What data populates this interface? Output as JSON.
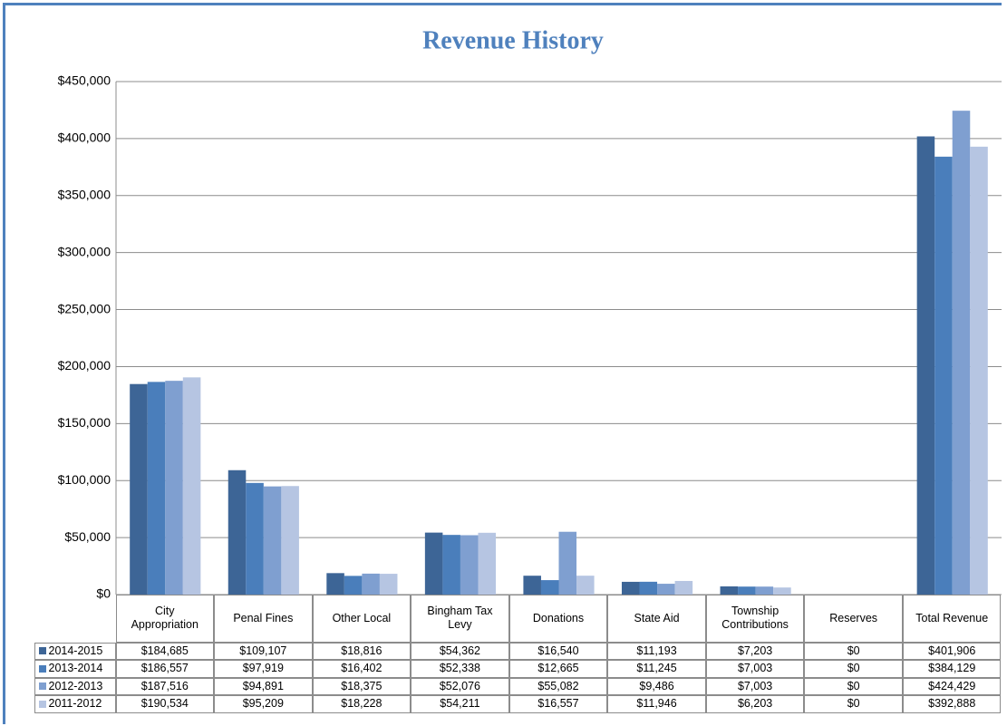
{
  "chart_data": {
    "type": "bar",
    "title": "Revenue History",
    "categories": [
      "City Appropriation",
      "Penal Fines",
      "Other Local",
      "Bingham Tax Levy",
      "Donations",
      "State Aid",
      "Township Contributions",
      "Reserves",
      "Total Revenue"
    ],
    "series": [
      {
        "name": "2014-2015",
        "color": "#3d6596",
        "values": [
          184685,
          109107,
          18816,
          54362,
          16540,
          11193,
          7203,
          0,
          401906
        ],
        "value_labels": [
          "$184,685",
          "$109,107",
          "$18,816",
          "$54,362",
          "$16,540",
          "$11,193",
          "$7,203",
          "$0",
          "$401,906"
        ]
      },
      {
        "name": "2013-2014",
        "color": "#4a7ebb",
        "values": [
          186557,
          97919,
          16402,
          52338,
          12665,
          11245,
          7003,
          0,
          384129
        ],
        "value_labels": [
          "$186,557",
          "$97,919",
          "$16,402",
          "$52,338",
          "$12,665",
          "$11,245",
          "$7,003",
          "$0",
          "$384,129"
        ]
      },
      {
        "name": "2012-2013",
        "color": "#7f9fd0",
        "values": [
          187516,
          94891,
          18375,
          52076,
          55082,
          9486,
          7003,
          0,
          424429
        ],
        "value_labels": [
          "$187,516",
          "$94,891",
          "$18,375",
          "$52,076",
          "$55,082",
          "$9,486",
          "$7,003",
          "$0",
          "$424,429"
        ]
      },
      {
        "name": "2011-2012",
        "color": "#b6c5e2",
        "values": [
          190534,
          95209,
          18228,
          54211,
          16557,
          11946,
          6203,
          0,
          392888
        ],
        "value_labels": [
          "$190,534",
          "$95,209",
          "$18,228",
          "$54,211",
          "$16,557",
          "$11,946",
          "$6,203",
          "$0",
          "$392,888"
        ]
      }
    ],
    "ylim": [
      0,
      450000
    ],
    "yticks": [
      {
        "value": 0,
        "label": "$0"
      },
      {
        "value": 50000,
        "label": "$50,000"
      },
      {
        "value": 100000,
        "label": "$100,000"
      },
      {
        "value": 150000,
        "label": "$150,000"
      },
      {
        "value": 200000,
        "label": "$200,000"
      },
      {
        "value": 250000,
        "label": "$250,000"
      },
      {
        "value": 300000,
        "label": "$300,000"
      },
      {
        "value": 350000,
        "label": "$350,000"
      },
      {
        "value": 400000,
        "label": "$400,000"
      },
      {
        "value": 450000,
        "label": "$450,000"
      }
    ],
    "grid": true
  }
}
